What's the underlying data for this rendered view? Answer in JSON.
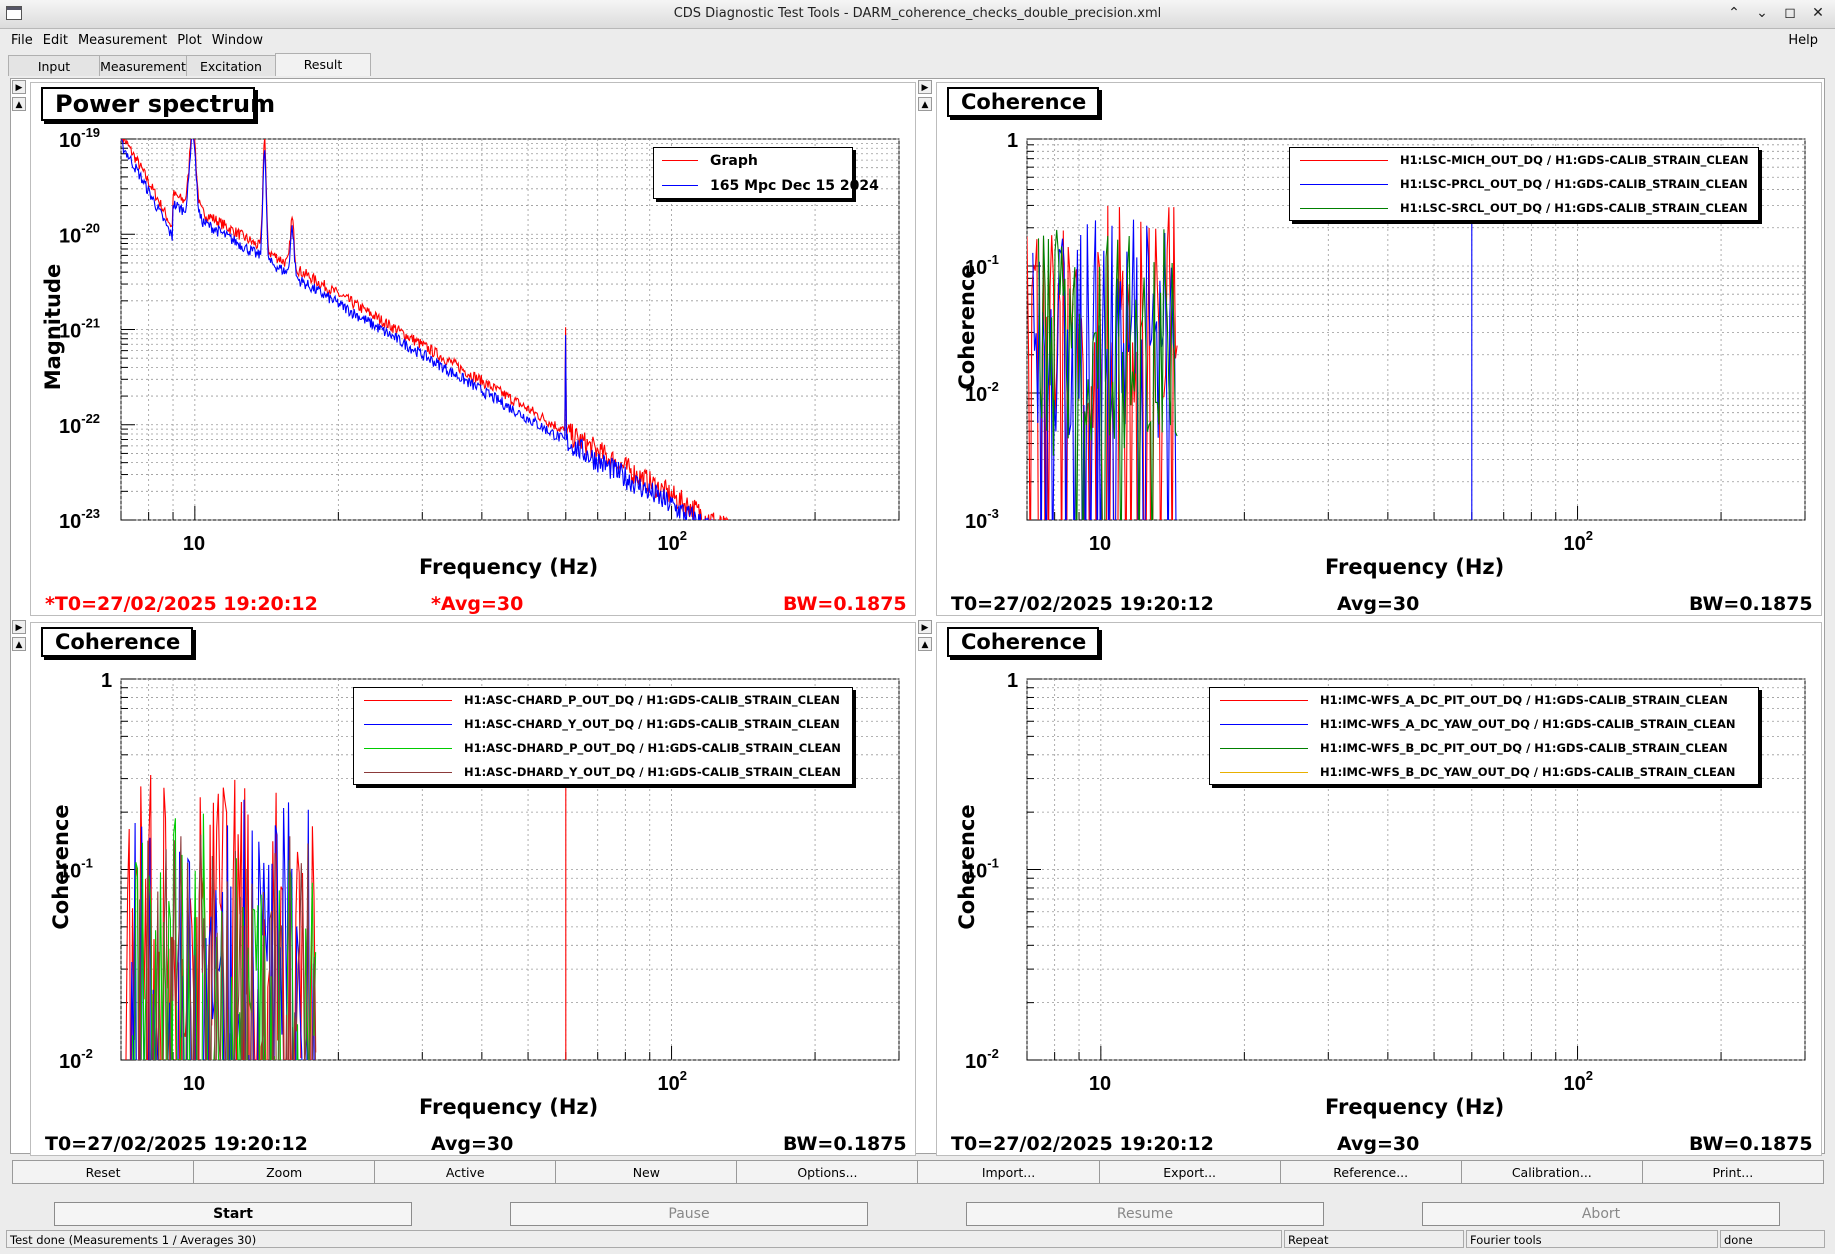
{
  "window": {
    "title": "CDS Diagnostic Test Tools - DARM_coherence_checks_double_precision.xml"
  },
  "menu": {
    "file": "File",
    "edit": "Edit",
    "measurement": "Measurement",
    "plot": "Plot",
    "window": "Window",
    "help": "Help"
  },
  "tabs": [
    "Input",
    "Measurement",
    "Excitation",
    "Result"
  ],
  "active_tab": "Result",
  "panels": [
    {
      "title": "Power spectrum",
      "ylabel": "Magnitude",
      "xlabel": "Frequency (Hz)",
      "y_ticks": [
        "10^-19",
        "10^-20",
        "10^-21",
        "10^-22",
        "10^-23"
      ],
      "x_ticks": [
        "10",
        "10^2"
      ],
      "legend": [
        {
          "label": "Graph",
          "color": "#ff0000"
        },
        {
          "label": "165 Mpc Dec 15 2024",
          "color": "#0000ff"
        }
      ],
      "footer": {
        "t0": "*T0=27/02/2025 19:20:12",
        "avg": "*Avg=30",
        "bw": "BW=0.1875",
        "color": "#ff0000"
      }
    },
    {
      "title": "Coherence",
      "ylabel": "Coherence",
      "xlabel": "Frequency (Hz)",
      "y_ticks": [
        "1",
        "10^-1",
        "10^-2",
        "10^-3"
      ],
      "x_ticks": [
        "10",
        "10^2"
      ],
      "legend": [
        {
          "label": "H1:LSC-MICH_OUT_DQ / H1:GDS-CALIB_STRAIN_CLEAN",
          "color": "#ff0000"
        },
        {
          "label": "H1:LSC-PRCL_OUT_DQ / H1:GDS-CALIB_STRAIN_CLEAN",
          "color": "#0000ff"
        },
        {
          "label": "H1:LSC-SRCL_OUT_DQ / H1:GDS-CALIB_STRAIN_CLEAN",
          "color": "#008000"
        }
      ],
      "footer": {
        "t0": "T0=27/02/2025 19:20:12",
        "avg": "Avg=30",
        "bw": "BW=0.1875",
        "color": "#000000"
      }
    },
    {
      "title": "Coherence",
      "ylabel": "Coherence",
      "xlabel": "Frequency (Hz)",
      "y_ticks": [
        "1",
        "10^-1",
        "10^-2"
      ],
      "x_ticks": [
        "10",
        "10^2"
      ],
      "legend": [
        {
          "label": "H1:ASC-CHARD_P_OUT_DQ / H1:GDS-CALIB_STRAIN_CLEAN",
          "color": "#ff0000"
        },
        {
          "label": "H1:ASC-CHARD_Y_OUT_DQ / H1:GDS-CALIB_STRAIN_CLEAN",
          "color": "#0000ff"
        },
        {
          "label": "H1:ASC-DHARD_P_OUT_DQ / H1:GDS-CALIB_STRAIN_CLEAN",
          "color": "#00cc00"
        },
        {
          "label": "H1:ASC-DHARD_Y_OUT_DQ / H1:GDS-CALIB_STRAIN_CLEAN",
          "color": "#8b3a3a"
        }
      ],
      "footer": {
        "t0": "T0=27/02/2025 19:20:12",
        "avg": "Avg=30",
        "bw": "BW=0.1875",
        "color": "#000000"
      }
    },
    {
      "title": "Coherence",
      "ylabel": "Coherence",
      "xlabel": "Frequency (Hz)",
      "y_ticks": [
        "1",
        "10^-1",
        "10^-2"
      ],
      "x_ticks": [
        "10",
        "10^2"
      ],
      "legend": [
        {
          "label": "H1:IMC-WFS_A_DC_PIT_OUT_DQ / H1:GDS-CALIB_STRAIN_CLEAN",
          "color": "#ff0000"
        },
        {
          "label": "H1:IMC-WFS_A_DC_YAW_OUT_DQ / H1:GDS-CALIB_STRAIN_CLEAN",
          "color": "#0000ff"
        },
        {
          "label": "H1:IMC-WFS_B_DC_PIT_OUT_DQ / H1:GDS-CALIB_STRAIN_CLEAN",
          "color": "#008000"
        },
        {
          "label": "H1:IMC-WFS_B_DC_YAW_OUT_DQ / H1:GDS-CALIB_STRAIN_CLEAN",
          "color": "#e8b000"
        }
      ],
      "footer": {
        "t0": "T0=27/02/2025 19:20:12",
        "avg": "Avg=30",
        "bw": "BW=0.1875",
        "color": "#000000"
      }
    }
  ],
  "plot_buttons": [
    "Reset",
    "Zoom",
    "Active",
    "New",
    "Options...",
    "Import...",
    "Export...",
    "Reference...",
    "Calibration...",
    "Print..."
  ],
  "controls": {
    "start": "Start",
    "pause": "Pause",
    "resume": "Resume",
    "abort": "Abort"
  },
  "status": {
    "message": "Test done (Measurements 1 / Averages 30)",
    "mode": "Repeat",
    "tool": "Fourier tools",
    "state": "done"
  }
}
